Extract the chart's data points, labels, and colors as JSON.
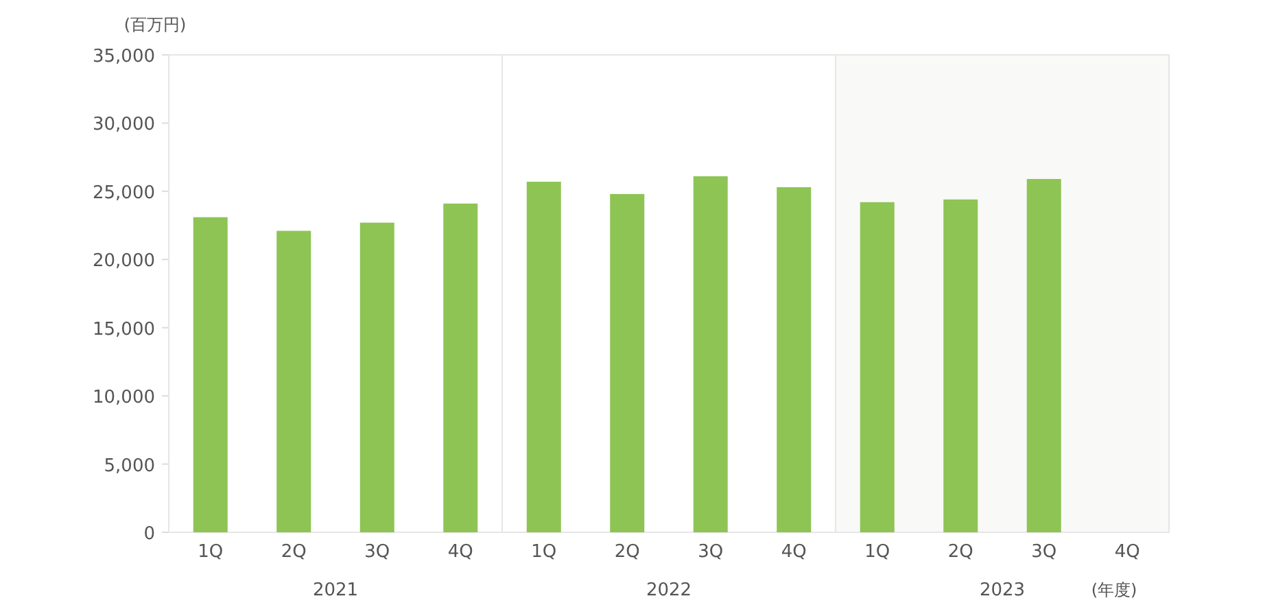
{
  "chart_data": {
    "type": "bar",
    "categories": [
      "1Q",
      "2Q",
      "3Q",
      "4Q",
      "1Q",
      "2Q",
      "3Q",
      "4Q",
      "1Q",
      "2Q",
      "3Q",
      "4Q"
    ],
    "values": [
      23100,
      22100,
      22700,
      24100,
      25700,
      24800,
      26100,
      25300,
      24200,
      24400,
      25900,
      null
    ],
    "color": "#8dc453",
    "ylabel": "(百万円)",
    "ylim": [
      0,
      35000
    ],
    "yticks": [
      {
        "value": 0,
        "label": "0"
      },
      {
        "value": 5000,
        "label": "5,000"
      },
      {
        "value": 10000,
        "label": "10,000"
      },
      {
        "value": 15000,
        "label": "15,000"
      },
      {
        "value": 20000,
        "label": "20,000"
      },
      {
        "value": 25000,
        "label": "25,000"
      },
      {
        "value": 30000,
        "label": "30,000"
      },
      {
        "value": 35000,
        "label": "35,000"
      }
    ],
    "annotations": [
      "2021",
      "2022",
      "2023",
      "(年度)"
    ],
    "grid": false,
    "legend": false
  }
}
